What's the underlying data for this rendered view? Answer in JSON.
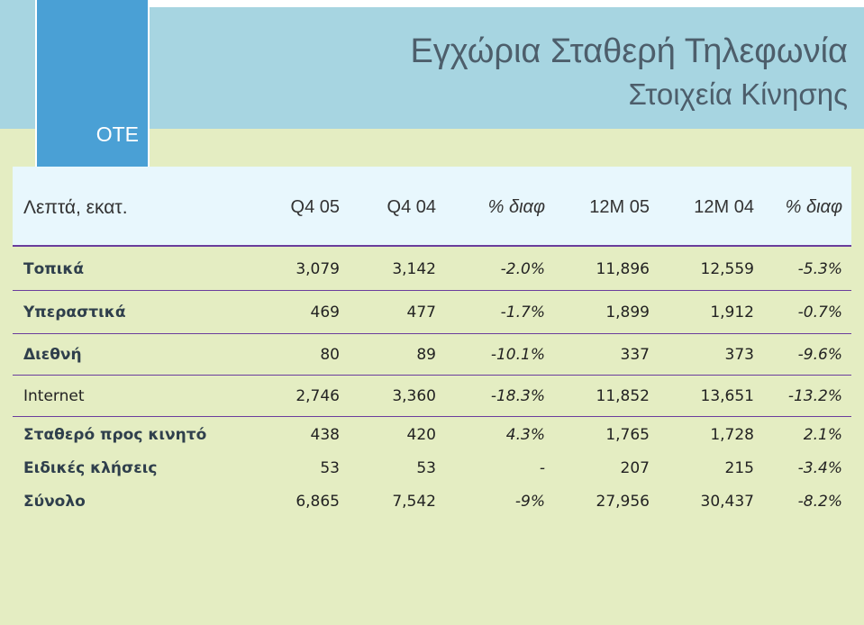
{
  "company": "OTE",
  "title": "Εγχώρια Σταθερή Τηλεφωνία",
  "subtitle": "Στοιχεία Κίνησης",
  "table": {
    "headers": [
      "Λεπτά, εκατ.",
      "Q4 05",
      "Q4 04",
      "% διαφ",
      "12M 05",
      "12M  04",
      "% διαφ"
    ],
    "rows": [
      {
        "label": "Τοπικά",
        "cells": [
          "3,079",
          "3,142",
          "-2.0%",
          "11,896",
          "12,559",
          "-5.3%"
        ]
      },
      {
        "label": "Υπεραστικά",
        "cells": [
          "469",
          "477",
          "-1.7%",
          "1,899",
          "1,912",
          "-0.7%"
        ]
      },
      {
        "label": "Διεθνή",
        "cells": [
          "80",
          "89",
          "-10.1%",
          "337",
          "373",
          "-9.6%"
        ]
      },
      {
        "label": "Internet",
        "cells": [
          "2,746",
          "3,360",
          "-18.3%",
          "11,852",
          "13,651",
          "-13.2%"
        ]
      },
      {
        "label": "Σταθερό προς κινητό",
        "cells": [
          "438",
          "420",
          "4.3%",
          "1,765",
          "1,728",
          "2.1%"
        ]
      },
      {
        "label": "Ειδικές κλήσεις",
        "cells": [
          "53",
          "53",
          "-",
          "207",
          "215",
          "-3.4%"
        ]
      },
      {
        "label": "Σύνολο",
        "cells": [
          "6,865",
          "7,542",
          "-9%",
          "27,956",
          "30,437",
          "-8.2%"
        ]
      }
    ]
  },
  "colors": {
    "background": "#e4edc2",
    "top_band": "#a7d5e1",
    "logo_box": "#4aa0d5",
    "header_band": "#e8f7fd",
    "rule": "#6a3d9c",
    "title_text": "#4d5e6b"
  }
}
